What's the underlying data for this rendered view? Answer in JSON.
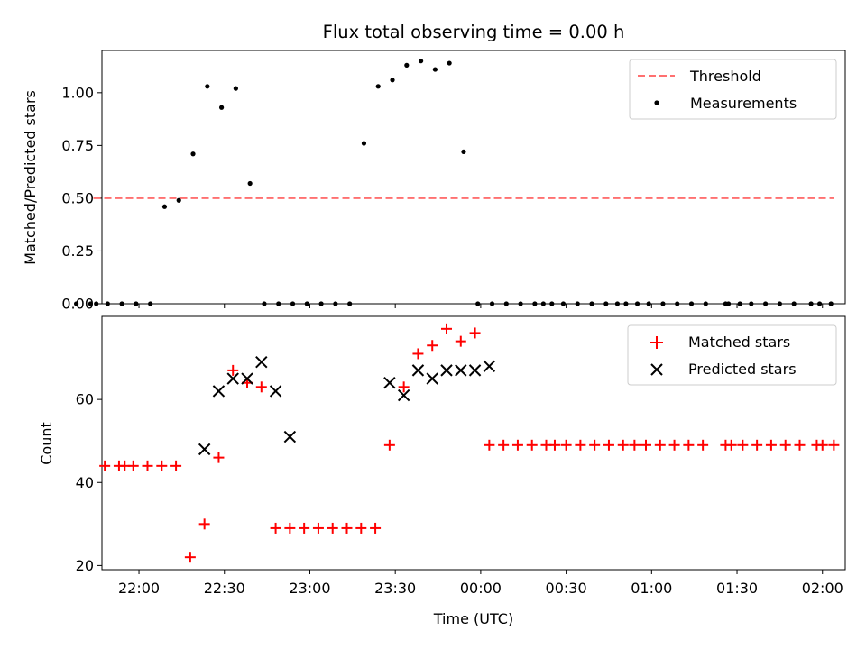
{
  "chart_data": [
    {
      "type": "scatter",
      "title": "Flux total observing time = 0.00 h",
      "xlabel": "",
      "ylabel": "Matched/Predicted stars",
      "xlim": [
        "21:47",
        "02:08"
      ],
      "ylim": [
        0,
        1.2
      ],
      "y_ticks": [
        "0.00",
        "0.25",
        "0.50",
        "0.75",
        "1.00"
      ],
      "grid": false,
      "legend_position": "top-right",
      "series": [
        {
          "name": "Threshold",
          "kind": "dashed-line",
          "color": "#ff7070",
          "x": [
            "21:44",
            "02:04"
          ],
          "y": [
            0.5,
            0.5
          ]
        },
        {
          "name": "Measurements",
          "kind": "points",
          "color": "#000000",
          "x": [
            "21:38",
            "21:43",
            "21:45",
            "21:49",
            "21:54",
            "21:59",
            "22:04",
            "22:09",
            "22:14",
            "22:19",
            "22:24",
            "22:29",
            "22:34",
            "22:39",
            "22:44",
            "22:49",
            "22:54",
            "22:59",
            "23:04",
            "23:09",
            "23:14",
            "23:19",
            "23:24",
            "23:29",
            "23:34",
            "23:39",
            "23:44",
            "23:49",
            "23:54",
            "23:59",
            "00:04",
            "00:09",
            "00:14",
            "00:19",
            "00:22",
            "00:25",
            "00:29",
            "00:34",
            "00:39",
            "00:44",
            "00:48",
            "00:51",
            "00:55",
            "00:59",
            "01:04",
            "01:09",
            "01:14",
            "01:19",
            "01:26",
            "01:27",
            "01:31",
            "01:35",
            "01:40",
            "01:45",
            "01:50",
            "01:56",
            "01:59",
            "02:03"
          ],
          "y": [
            0,
            0,
            0,
            0,
            0,
            0,
            0,
            0.46,
            0.49,
            0.71,
            1.03,
            0.93,
            1.02,
            0.57,
            0,
            0,
            0,
            0,
            0,
            0,
            0,
            0.76,
            1.03,
            1.06,
            1.13,
            1.15,
            1.11,
            1.14,
            0.72,
            0,
            0,
            0,
            0,
            0,
            0,
            0,
            0,
            0,
            0,
            0,
            0,
            0,
            0,
            0,
            0,
            0,
            0,
            0,
            0,
            0,
            0,
            0,
            0,
            0,
            0,
            0,
            0,
            0
          ]
        }
      ]
    },
    {
      "type": "scatter",
      "title": "",
      "xlabel": "Time (UTC)",
      "ylabel": "Count",
      "xlim": [
        "21:47",
        "02:08"
      ],
      "x_ticks": [
        "22:00",
        "22:30",
        "23:00",
        "23:30",
        "00:00",
        "00:30",
        "01:00",
        "01:30",
        "02:00"
      ],
      "ylim": [
        19,
        80
      ],
      "y_ticks": [
        "20",
        "40",
        "60"
      ],
      "grid": false,
      "legend_position": "top-right",
      "series": [
        {
          "name": "Matched stars",
          "kind": "plus",
          "color": "#ff0000",
          "x": [
            "21:48",
            "21:53",
            "21:55",
            "21:58",
            "22:03",
            "22:08",
            "22:13",
            "22:18",
            "22:23",
            "22:28",
            "22:33",
            "22:38",
            "22:43",
            "22:48",
            "22:53",
            "22:58",
            "23:03",
            "23:08",
            "23:13",
            "23:18",
            "23:23",
            "23:28",
            "23:33",
            "23:38",
            "23:43",
            "23:48",
            "23:53",
            "23:58",
            "00:03",
            "00:08",
            "00:13",
            "00:18",
            "00:23",
            "00:26",
            "00:30",
            "00:35",
            "00:40",
            "00:45",
            "00:50",
            "00:54",
            "00:58",
            "01:03",
            "01:08",
            "01:13",
            "01:18",
            "01:26",
            "01:28",
            "01:32",
            "01:37",
            "01:42",
            "01:47",
            "01:52",
            "01:58",
            "02:00",
            "02:04"
          ],
          "y": [
            44,
            44,
            44,
            44,
            44,
            44,
            44,
            22,
            30,
            46,
            67,
            64,
            63,
            29,
            29,
            29,
            29,
            29,
            29,
            29,
            29,
            49,
            63,
            71,
            73,
            77,
            74,
            76,
            49,
            49,
            49,
            49,
            49,
            49,
            49,
            49,
            49,
            49,
            49,
            49,
            49,
            49,
            49,
            49,
            49,
            49,
            49,
            49,
            49,
            49,
            49,
            49,
            49,
            49,
            49
          ]
        },
        {
          "name": "Predicted stars",
          "kind": "cross",
          "color": "#000000",
          "x": [
            "22:23",
            "22:28",
            "22:33",
            "22:38",
            "22:43",
            "22:48",
            "22:53",
            "23:28",
            "23:33",
            "23:38",
            "23:43",
            "23:48",
            "23:53",
            "23:58",
            "00:03"
          ],
          "y": [
            48,
            62,
            65,
            65,
            69,
            62,
            51,
            64,
            61,
            67,
            65,
            67,
            67,
            67,
            68
          ]
        }
      ]
    }
  ]
}
